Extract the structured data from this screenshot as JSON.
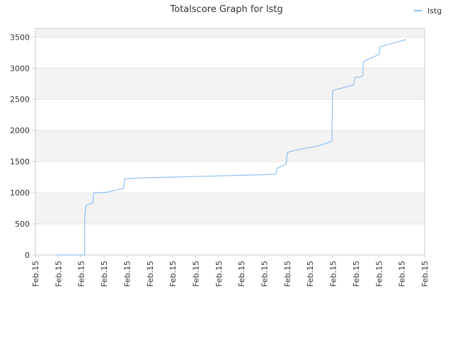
{
  "chart_data": {
    "type": "line",
    "title": "Totalscore Graph for lstg",
    "xlabel": "",
    "ylabel": "",
    "x_tick_labels": [
      "Feb.15",
      "Feb.15",
      "Feb.15",
      "Feb.15",
      "Feb.15",
      "Feb.15",
      "Feb.15",
      "Feb.15",
      "Feb.15",
      "Feb.15",
      "Feb.15",
      "Feb.15",
      "Feb.15",
      "Feb.15",
      "Feb.15",
      "Feb.15",
      "Feb.15",
      "Feb.15"
    ],
    "y_ticks": [
      0,
      500,
      1000,
      1500,
      2000,
      2500,
      3000,
      3500
    ],
    "ylim": [
      0,
      3640
    ],
    "xlim": [
      0,
      17
    ],
    "grid": true,
    "legend": "top-right",
    "colors": {
      "series": "#90c0f0",
      "band": "#f3f3f3",
      "grid": "#e6e6e6",
      "axis": "#cccccc"
    },
    "series": [
      {
        "name": "lstg",
        "points": [
          [
            0.9,
            0
          ],
          [
            2.15,
            0
          ],
          [
            2.15,
            560
          ],
          [
            2.2,
            790
          ],
          [
            2.5,
            840
          ],
          [
            2.55,
            1000
          ],
          [
            3.1,
            1005
          ],
          [
            3.85,
            1070
          ],
          [
            3.9,
            1220
          ],
          [
            4.4,
            1235
          ],
          [
            5.5,
            1245
          ],
          [
            7.0,
            1260
          ],
          [
            8.5,
            1275
          ],
          [
            10.0,
            1290
          ],
          [
            10.5,
            1300
          ],
          [
            10.55,
            1390
          ],
          [
            10.95,
            1460
          ],
          [
            11.0,
            1640
          ],
          [
            11.1,
            1660
          ],
          [
            11.7,
            1710
          ],
          [
            12.3,
            1745
          ],
          [
            12.95,
            1825
          ],
          [
            12.96,
            2150
          ],
          [
            12.98,
            2630
          ],
          [
            13.05,
            2650
          ],
          [
            13.9,
            2730
          ],
          [
            13.95,
            2850
          ],
          [
            14.2,
            2860
          ],
          [
            14.3,
            2880
          ],
          [
            14.32,
            3100
          ],
          [
            14.45,
            3130
          ],
          [
            15.0,
            3220
          ],
          [
            15.05,
            3340
          ],
          [
            15.3,
            3370
          ],
          [
            16.2,
            3460
          ]
        ]
      }
    ]
  }
}
